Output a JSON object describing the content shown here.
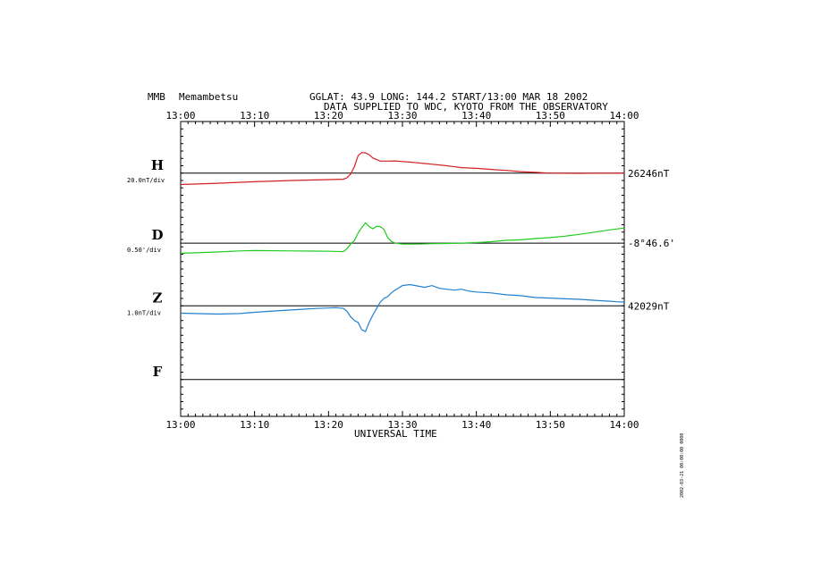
{
  "header": {
    "station_code": "MMB",
    "station_name": "Memambetsu",
    "info": "GGLAT:  43.9 LONG: 144.2 START/13:00 MAR 18 2002",
    "source": "DATA SUPPLIED TO WDC, KYOTO FROM THE OBSERVATORY"
  },
  "footer": {
    "xlabel": "UNIVERSAL TIME"
  },
  "stamp": "2002-03-21  00:00:00  0000",
  "chart_data": {
    "type": "line",
    "x_unit": "minutes after 13:00 UT",
    "xlim": [
      0,
      60
    ],
    "x_ticks": [
      0,
      10,
      20,
      30,
      40,
      50,
      60
    ],
    "x_tick_labels": [
      "13:00",
      "13:10",
      "13:20",
      "13:30",
      "13:40",
      "13:50",
      "14:00"
    ],
    "grid": false,
    "panels": [
      {
        "component": "H",
        "scale_label": "20.0nT/div",
        "baseline_label": "26246nT",
        "color": "#d42020",
        "divisions_below": 0.6,
        "divisions_above": 1.4,
        "x": [
          0,
          5,
          10,
          15,
          20,
          22,
          22.5,
          23,
          23.5,
          24,
          24.5,
          25,
          25.5,
          26,
          27,
          28,
          29,
          30,
          31,
          32,
          33,
          34,
          36,
          38,
          40,
          42,
          44,
          46,
          48,
          50,
          52,
          54,
          56,
          58,
          60
        ],
        "values": [
          -0.62,
          -0.55,
          -0.47,
          -0.4,
          -0.35,
          -0.33,
          -0.25,
          -0.05,
          0.35,
          0.95,
          1.12,
          1.1,
          1.0,
          0.82,
          0.65,
          0.65,
          0.66,
          0.63,
          0.6,
          0.56,
          0.52,
          0.48,
          0.4,
          0.3,
          0.26,
          0.2,
          0.15,
          0.08,
          0.04,
          0.0,
          0.0,
          -0.01,
          0.0,
          0.0,
          0.0
        ]
      },
      {
        "component": "D",
        "scale_label": "0.50'/div",
        "baseline_label": "-8°46.6'",
        "color": "#20cc20",
        "divisions_below": 0.7,
        "divisions_above": 1.3,
        "x": [
          0,
          5,
          8,
          10,
          15,
          18,
          20,
          22,
          22.5,
          23,
          23.5,
          24,
          24.5,
          25,
          25.5,
          26,
          26.5,
          27,
          27.5,
          28,
          28.5,
          29,
          30,
          32,
          34,
          36,
          38,
          40,
          42,
          44,
          46,
          48,
          50,
          52,
          54,
          56,
          58,
          60
        ],
        "values": [
          -0.55,
          -0.48,
          -0.42,
          -0.4,
          -0.42,
          -0.43,
          -0.44,
          -0.46,
          -0.3,
          -0.05,
          0.15,
          0.55,
          0.85,
          1.1,
          0.9,
          0.78,
          0.92,
          0.9,
          0.75,
          0.3,
          0.1,
          0.0,
          -0.05,
          -0.05,
          -0.03,
          -0.02,
          0.0,
          0.03,
          0.08,
          0.15,
          0.18,
          0.25,
          0.3,
          0.38,
          0.48,
          0.6,
          0.72,
          0.82
        ]
      },
      {
        "component": "Z",
        "scale_label": "1.0nT/div",
        "baseline_label": "42029nT",
        "color": "#2080d0",
        "divisions_below": 1.0,
        "divisions_above": 1.0,
        "x": [
          0,
          5,
          8,
          10,
          12,
          14,
          16,
          18,
          20,
          21,
          22,
          22.5,
          23,
          23.5,
          24,
          24.5,
          25,
          25.5,
          26,
          26.5,
          27,
          27.5,
          28,
          28.5,
          29,
          30,
          31,
          32,
          33,
          34,
          35,
          36,
          37,
          38,
          39,
          40,
          42,
          44,
          46,
          48,
          50,
          52,
          54,
          56,
          58,
          59,
          60
        ],
        "values": [
          -0.4,
          -0.45,
          -0.42,
          -0.35,
          -0.3,
          -0.25,
          -0.2,
          -0.15,
          -0.12,
          -0.1,
          -0.14,
          -0.3,
          -0.6,
          -0.8,
          -0.9,
          -1.3,
          -1.4,
          -0.9,
          -0.5,
          -0.15,
          0.2,
          0.4,
          0.5,
          0.7,
          0.85,
          1.1,
          1.15,
          1.08,
          1.0,
          1.1,
          0.95,
          0.9,
          0.85,
          0.9,
          0.8,
          0.75,
          0.7,
          0.6,
          0.55,
          0.45,
          0.42,
          0.38,
          0.35,
          0.3,
          0.25,
          0.22,
          0.2
        ]
      },
      {
        "component": "F",
        "scale_label": "",
        "baseline_label": "",
        "color": "#000000",
        "divisions_below": 1.0,
        "divisions_above": 1.0,
        "x": [],
        "values": []
      }
    ]
  }
}
